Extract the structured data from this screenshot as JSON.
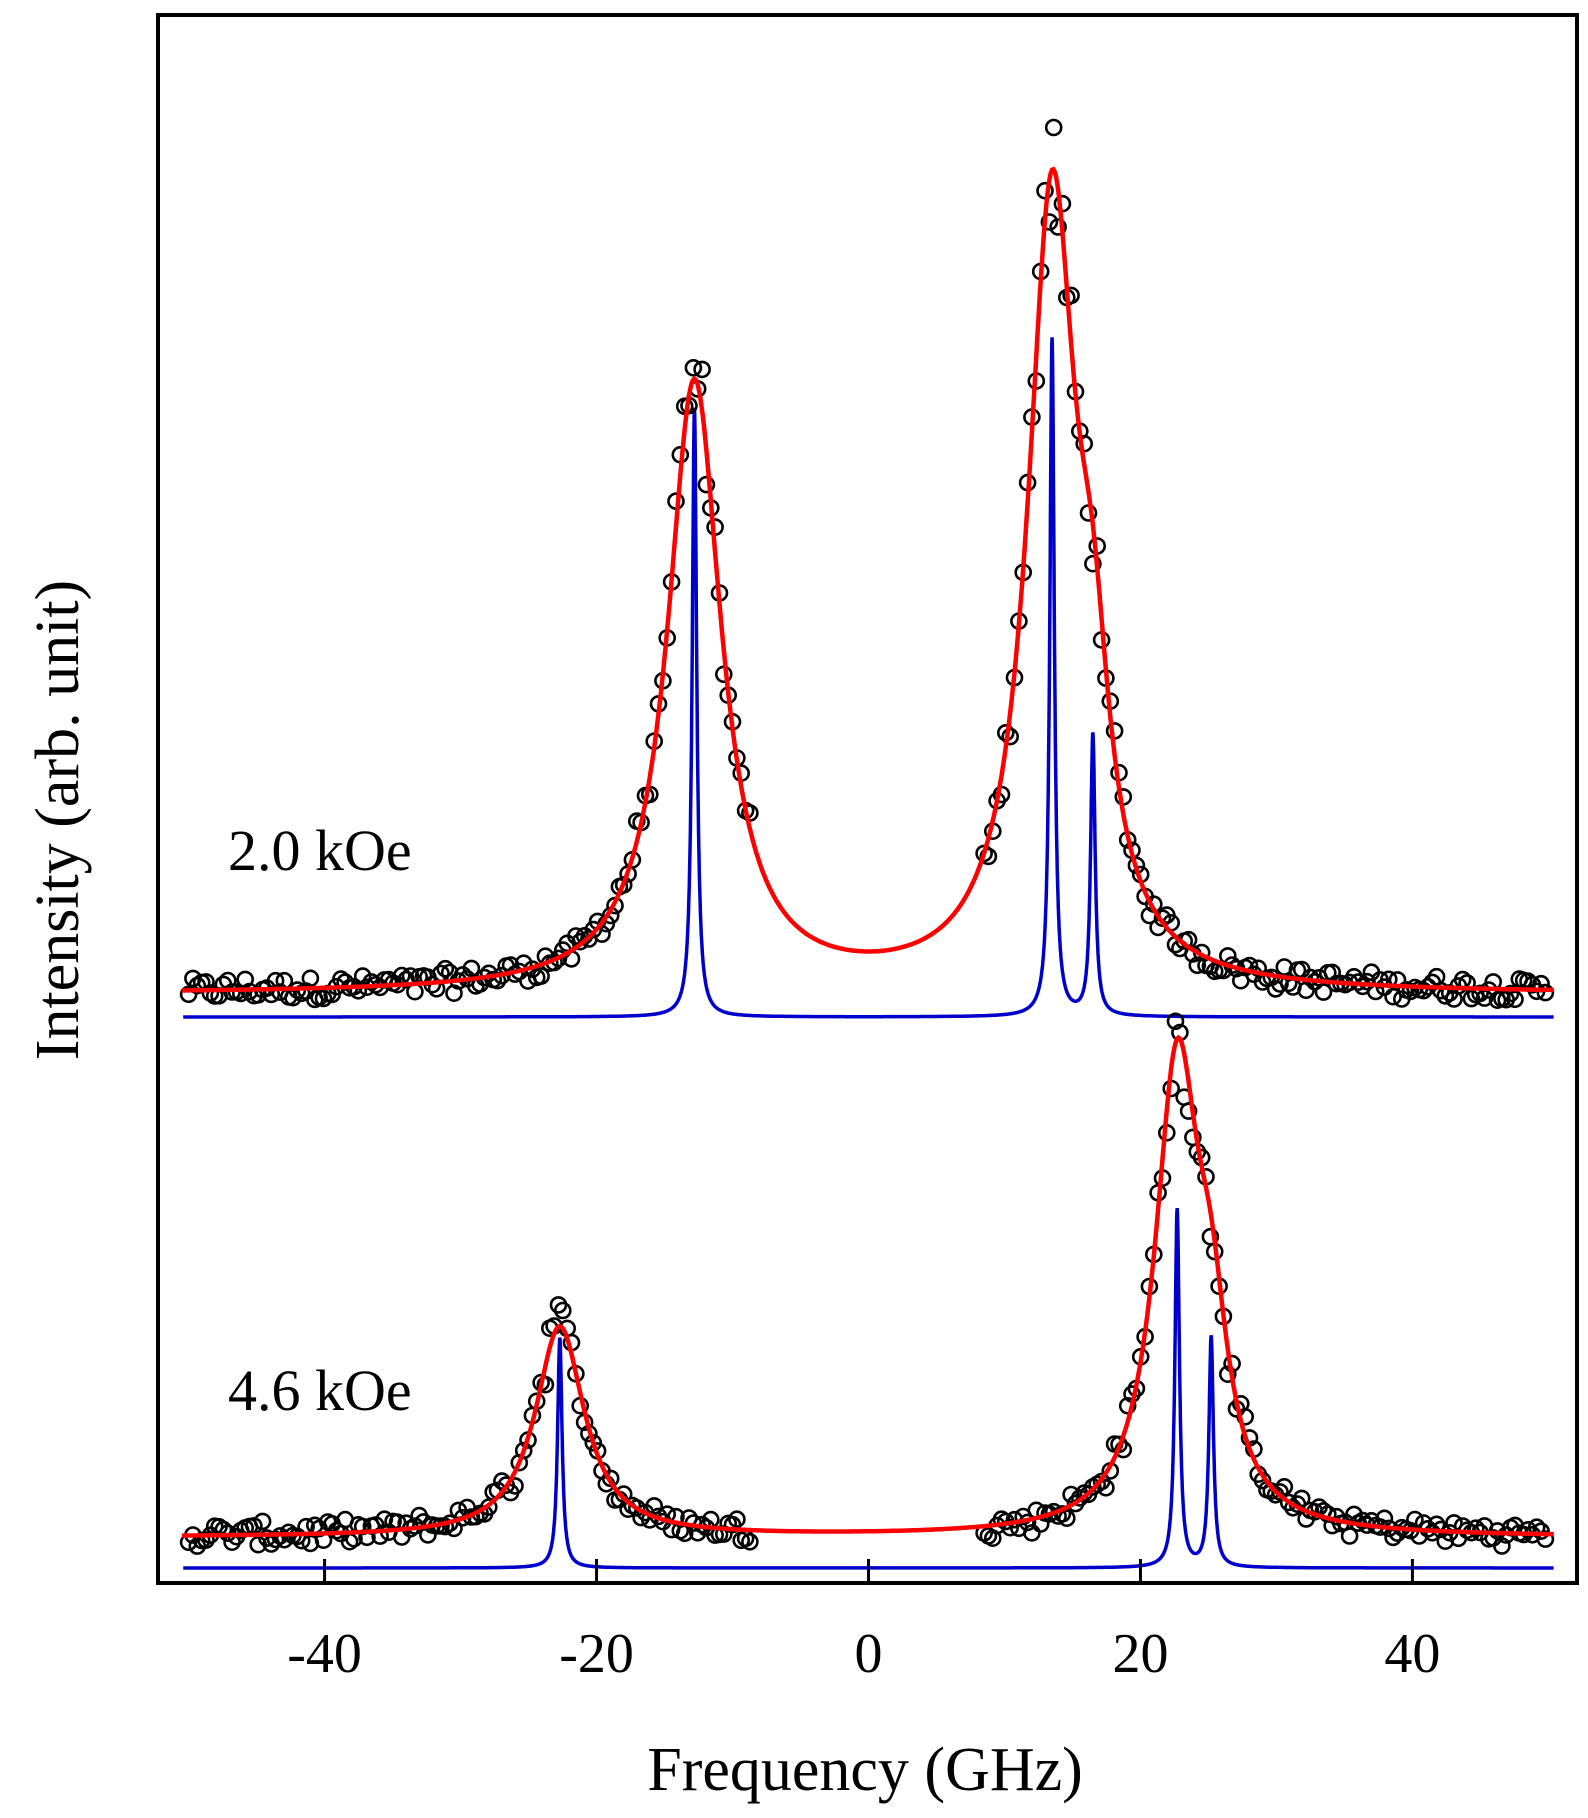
{
  "chart_data": {
    "type": "scatter",
    "title": "",
    "xlabel": "Frequency (GHz)",
    "ylabel": "Intensity (arb. unit)",
    "xlim": [
      -51,
      51
    ],
    "xticks": [
      -40,
      -20,
      0,
      20,
      40
    ],
    "xtick_labels": [
      "-40",
      "-20",
      "0",
      "20",
      "40"
    ],
    "grid": false,
    "legend": "none",
    "colors": {
      "data": "#000000",
      "fit": "#ff0000",
      "deconvolved": "#0000cc",
      "frame": "#000000"
    },
    "panels": [
      {
        "label": "2.0 kOe",
        "baseline": 0,
        "data_ranges": [
          [
            -50,
            -8.5
          ],
          [
            8.5,
            50
          ]
        ],
        "fit": {
          "background": 0.09,
          "peaks": [
            {
              "center": -12.8,
              "amplitude": 2.38,
              "hwhm": 2.4
            },
            {
              "center": 13.5,
              "amplitude": 3.05,
              "hwhm": 2.2
            },
            {
              "center": 16.5,
              "amplitude": 0.75,
              "hwhm": 1.5
            }
          ]
        },
        "deconvolved": {
          "peaks": [
            {
              "center": -12.8,
              "height": 2.38
            },
            {
              "center": 13.5,
              "height": 2.65
            },
            {
              "center": 16.5,
              "height": 1.1
            }
          ],
          "hwhm": 0.2
        }
      },
      {
        "label": "4.6 kOe",
        "baseline": 0,
        "data_ranges": [
          [
            -50,
            -8.5
          ],
          [
            8.5,
            50
          ]
        ],
        "fit": {
          "background": 0.12,
          "peaks": [
            {
              "center": -22.7,
              "amplitude": 0.82,
              "hwhm": 2.2
            },
            {
              "center": 22.7,
              "amplitude": 1.8,
              "hwhm": 2.0
            },
            {
              "center": 25.2,
              "amplitude": 0.55,
              "hwhm": 1.5
            }
          ]
        },
        "deconvolved": {
          "peaks": [
            {
              "center": -22.7,
              "height": 0.9
            },
            {
              "center": 22.7,
              "height": 1.4
            },
            {
              "center": 25.2,
              "height": 0.9
            }
          ],
          "hwhm": 0.2
        }
      }
    ]
  }
}
